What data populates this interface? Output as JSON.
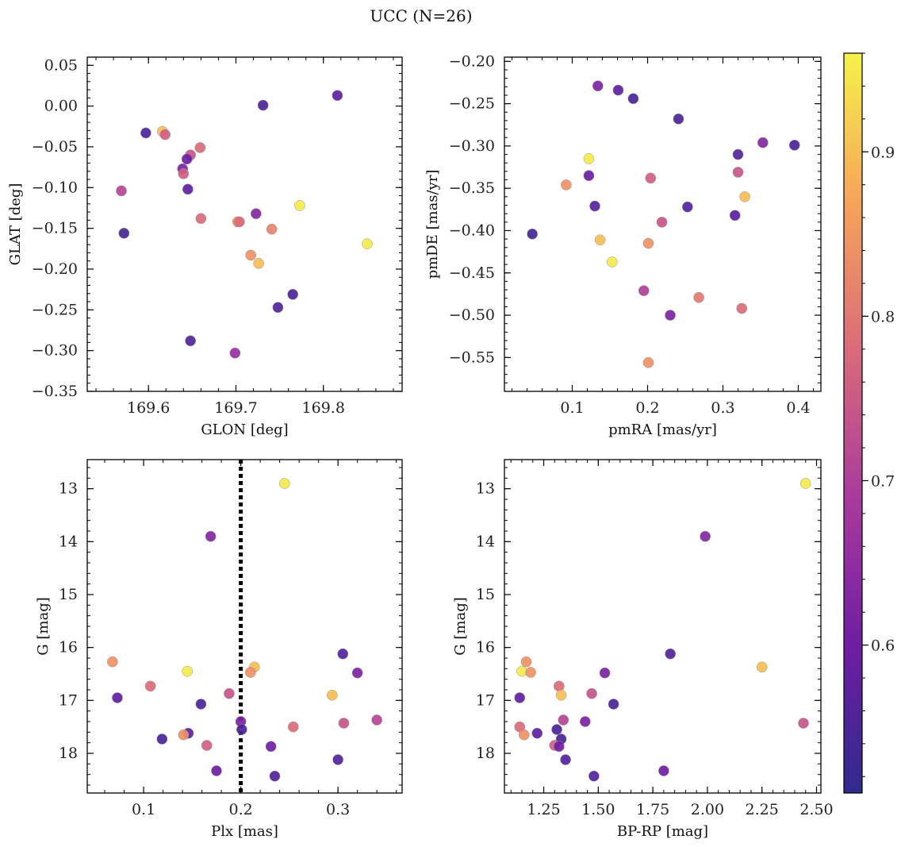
{
  "figure": {
    "suptitle": "UCC (N=26)",
    "colorbar": {
      "colormap": "plasma",
      "range": [
        0.51,
        0.96
      ],
      "ticks": [
        0.6,
        0.7,
        0.8,
        0.9
      ],
      "tick_labels": [
        "0.6",
        "0.7",
        "0.8",
        "0.9"
      ]
    }
  },
  "chart_data": [
    {
      "type": "scatter",
      "panel": "top-left",
      "xlabel": "GLON [deg]",
      "ylabel": "GLAT [deg]",
      "xlim": [
        169.53,
        169.89
      ],
      "ylim": [
        -0.35,
        0.06
      ],
      "xticks": [
        169.6,
        169.7,
        169.8
      ],
      "xtick_labels": [
        "169.6",
        "169.7",
        "169.8"
      ],
      "yticks": [
        0.05,
        0.0,
        -0.05,
        -0.1,
        -0.15,
        -0.2,
        -0.25,
        -0.3,
        -0.35
      ],
      "ytick_labels": [
        "0.05",
        "0.00",
        "−0.05",
        "−0.10",
        "−0.15",
        "−0.20",
        "−0.25",
        "−0.30",
        "−0.35"
      ],
      "points": [
        {
          "x": 169.597,
          "y": -0.033,
          "c": 0.55
        },
        {
          "x": 169.731,
          "y": 0.001,
          "c": 0.55
        },
        {
          "x": 169.816,
          "y": 0.013,
          "c": 0.58
        },
        {
          "x": 169.616,
          "y": -0.031,
          "c": 0.9
        },
        {
          "x": 169.619,
          "y": -0.035,
          "c": 0.76
        },
        {
          "x": 169.659,
          "y": -0.051,
          "c": 0.78
        },
        {
          "x": 169.648,
          "y": -0.06,
          "c": 0.74
        },
        {
          "x": 169.644,
          "y": -0.065,
          "c": 0.6
        },
        {
          "x": 169.639,
          "y": -0.077,
          "c": 0.62
        },
        {
          "x": 169.64,
          "y": -0.083,
          "c": 0.76
        },
        {
          "x": 169.645,
          "y": -0.102,
          "c": 0.58
        },
        {
          "x": 169.569,
          "y": -0.104,
          "c": 0.71
        },
        {
          "x": 169.773,
          "y": -0.122,
          "c": 0.95
        },
        {
          "x": 169.723,
          "y": -0.132,
          "c": 0.63
        },
        {
          "x": 169.66,
          "y": -0.138,
          "c": 0.78
        },
        {
          "x": 169.702,
          "y": -0.142,
          "c": 0.84
        },
        {
          "x": 169.704,
          "y": -0.142,
          "c": 0.78
        },
        {
          "x": 169.741,
          "y": -0.151,
          "c": 0.82
        },
        {
          "x": 169.572,
          "y": -0.156,
          "c": 0.54
        },
        {
          "x": 169.85,
          "y": -0.169,
          "c": 0.95
        },
        {
          "x": 169.717,
          "y": -0.183,
          "c": 0.84
        },
        {
          "x": 169.726,
          "y": -0.193,
          "c": 0.9
        },
        {
          "x": 169.765,
          "y": -0.231,
          "c": 0.55
        },
        {
          "x": 169.748,
          "y": -0.247,
          "c": 0.56
        },
        {
          "x": 169.648,
          "y": -0.288,
          "c": 0.56
        },
        {
          "x": 169.699,
          "y": -0.303,
          "c": 0.66
        }
      ]
    },
    {
      "type": "scatter",
      "panel": "top-right",
      "xlabel": "pmRA [mas/yr]",
      "ylabel": "pmDE [mas/yr]",
      "xlim": [
        0.01,
        0.43
      ],
      "ylim": [
        -0.59,
        -0.195
      ],
      "xticks": [
        0.1,
        0.2,
        0.3,
        0.4
      ],
      "xtick_labels": [
        "0.1",
        "0.2",
        "0.3",
        "0.4"
      ],
      "yticks": [
        -0.2,
        -0.25,
        -0.3,
        -0.35,
        -0.4,
        -0.45,
        -0.5,
        -0.55
      ],
      "ytick_labels": [
        "−0.20",
        "−0.25",
        "−0.30",
        "−0.35",
        "−0.40",
        "−0.45",
        "−0.50",
        "−0.55"
      ],
      "points": [
        {
          "x": 0.134,
          "y": -0.229,
          "c": 0.62
        },
        {
          "x": 0.161,
          "y": -0.234,
          "c": 0.58
        },
        {
          "x": 0.181,
          "y": -0.244,
          "c": 0.55
        },
        {
          "x": 0.241,
          "y": -0.268,
          "c": 0.55
        },
        {
          "x": 0.353,
          "y": -0.296,
          "c": 0.63
        },
        {
          "x": 0.395,
          "y": -0.299,
          "c": 0.55
        },
        {
          "x": 0.32,
          "y": -0.31,
          "c": 0.56
        },
        {
          "x": 0.122,
          "y": -0.315,
          "c": 0.95
        },
        {
          "x": 0.32,
          "y": -0.331,
          "c": 0.74
        },
        {
          "x": 0.122,
          "y": -0.335,
          "c": 0.59
        },
        {
          "x": 0.204,
          "y": -0.338,
          "c": 0.76
        },
        {
          "x": 0.092,
          "y": -0.346,
          "c": 0.84
        },
        {
          "x": 0.329,
          "y": -0.36,
          "c": 0.9
        },
        {
          "x": 0.13,
          "y": -0.371,
          "c": 0.57
        },
        {
          "x": 0.253,
          "y": -0.372,
          "c": 0.56
        },
        {
          "x": 0.316,
          "y": -0.382,
          "c": 0.57
        },
        {
          "x": 0.219,
          "y": -0.39,
          "c": 0.74
        },
        {
          "x": 0.047,
          "y": -0.404,
          "c": 0.54
        },
        {
          "x": 0.137,
          "y": -0.411,
          "c": 0.9
        },
        {
          "x": 0.201,
          "y": -0.415,
          "c": 0.84
        },
        {
          "x": 0.153,
          "y": -0.437,
          "c": 0.95
        },
        {
          "x": 0.195,
          "y": -0.471,
          "c": 0.7
        },
        {
          "x": 0.268,
          "y": -0.479,
          "c": 0.8
        },
        {
          "x": 0.325,
          "y": -0.492,
          "c": 0.78
        },
        {
          "x": 0.23,
          "y": -0.5,
          "c": 0.62
        },
        {
          "x": 0.201,
          "y": -0.556,
          "c": 0.84
        }
      ]
    },
    {
      "type": "scatter",
      "panel": "bottom-left",
      "xlabel": "Plx [mas]",
      "ylabel": "G [mag]",
      "xlim": [
        0.042,
        0.366
      ],
      "ylim": [
        18.75,
        12.45
      ],
      "vline": 0.2,
      "xticks": [
        0.1,
        0.2,
        0.3
      ],
      "xtick_labels": [
        "0.1",
        "0.2",
        "0.3"
      ],
      "yticks": [
        13,
        14,
        15,
        16,
        17,
        18
      ],
      "ytick_labels": [
        "13",
        "14",
        "15",
        "16",
        "17",
        "18"
      ],
      "points": [
        {
          "x": 0.245,
          "y": 12.9,
          "c": 0.95
        },
        {
          "x": 0.169,
          "y": 13.9,
          "c": 0.63
        },
        {
          "x": 0.305,
          "y": 16.12,
          "c": 0.56
        },
        {
          "x": 0.068,
          "y": 16.27,
          "c": 0.84
        },
        {
          "x": 0.214,
          "y": 16.37,
          "c": 0.9
        },
        {
          "x": 0.145,
          "y": 16.45,
          "c": 0.95
        },
        {
          "x": 0.21,
          "y": 16.47,
          "c": 0.84
        },
        {
          "x": 0.32,
          "y": 16.48,
          "c": 0.62
        },
        {
          "x": 0.107,
          "y": 16.73,
          "c": 0.78
        },
        {
          "x": 0.188,
          "y": 16.87,
          "c": 0.74
        },
        {
          "x": 0.294,
          "y": 16.9,
          "c": 0.9
        },
        {
          "x": 0.073,
          "y": 16.95,
          "c": 0.58
        },
        {
          "x": 0.159,
          "y": 17.07,
          "c": 0.55
        },
        {
          "x": 0.34,
          "y": 17.37,
          "c": 0.71
        },
        {
          "x": 0.2,
          "y": 17.4,
          "c": 0.62
        },
        {
          "x": 0.306,
          "y": 17.43,
          "c": 0.74
        },
        {
          "x": 0.254,
          "y": 17.5,
          "c": 0.78
        },
        {
          "x": 0.201,
          "y": 17.55,
          "c": 0.55
        },
        {
          "x": 0.146,
          "y": 17.62,
          "c": 0.58
        },
        {
          "x": 0.141,
          "y": 17.65,
          "c": 0.84
        },
        {
          "x": 0.119,
          "y": 17.73,
          "c": 0.55
        },
        {
          "x": 0.165,
          "y": 17.85,
          "c": 0.76
        },
        {
          "x": 0.231,
          "y": 17.87,
          "c": 0.6
        },
        {
          "x": 0.3,
          "y": 18.12,
          "c": 0.56
        },
        {
          "x": 0.175,
          "y": 18.33,
          "c": 0.6
        },
        {
          "x": 0.235,
          "y": 18.43,
          "c": 0.56
        }
      ]
    },
    {
      "type": "scatter",
      "panel": "bottom-right",
      "xlabel": "BP-RP [mag]",
      "ylabel": "G [mag]",
      "xlim": [
        1.07,
        2.52
      ],
      "ylim": [
        18.75,
        12.45
      ],
      "xticks": [
        1.25,
        1.5,
        1.75,
        2.0,
        2.25,
        2.5
      ],
      "xtick_labels": [
        "1.25",
        "1.50",
        "1.75",
        "2.00",
        "2.25",
        "2.50"
      ],
      "yticks": [
        13,
        14,
        15,
        16,
        17,
        18
      ],
      "ytick_labels": [
        "13",
        "14",
        "15",
        "16",
        "17",
        "18"
      ],
      "points": [
        {
          "x": 2.45,
          "y": 12.9,
          "c": 0.95
        },
        {
          "x": 1.99,
          "y": 13.9,
          "c": 0.63
        },
        {
          "x": 1.83,
          "y": 16.12,
          "c": 0.56
        },
        {
          "x": 1.17,
          "y": 16.27,
          "c": 0.84
        },
        {
          "x": 2.25,
          "y": 16.37,
          "c": 0.9
        },
        {
          "x": 1.15,
          "y": 16.45,
          "c": 0.95
        },
        {
          "x": 1.19,
          "y": 16.47,
          "c": 0.84
        },
        {
          "x": 1.53,
          "y": 16.48,
          "c": 0.62
        },
        {
          "x": 1.32,
          "y": 16.73,
          "c": 0.78
        },
        {
          "x": 1.47,
          "y": 16.87,
          "c": 0.74
        },
        {
          "x": 1.33,
          "y": 16.9,
          "c": 0.9
        },
        {
          "x": 1.14,
          "y": 16.95,
          "c": 0.58
        },
        {
          "x": 1.57,
          "y": 17.07,
          "c": 0.55
        },
        {
          "x": 1.34,
          "y": 17.37,
          "c": 0.71
        },
        {
          "x": 1.44,
          "y": 17.4,
          "c": 0.62
        },
        {
          "x": 2.44,
          "y": 17.43,
          "c": 0.74
        },
        {
          "x": 1.14,
          "y": 17.5,
          "c": 0.78
        },
        {
          "x": 1.31,
          "y": 17.55,
          "c": 0.55
        },
        {
          "x": 1.22,
          "y": 17.62,
          "c": 0.58
        },
        {
          "x": 1.16,
          "y": 17.65,
          "c": 0.84
        },
        {
          "x": 1.33,
          "y": 17.73,
          "c": 0.55
        },
        {
          "x": 1.3,
          "y": 17.85,
          "c": 0.76
        },
        {
          "x": 1.32,
          "y": 17.87,
          "c": 0.6
        },
        {
          "x": 1.35,
          "y": 18.12,
          "c": 0.56
        },
        {
          "x": 1.8,
          "y": 18.33,
          "c": 0.6
        },
        {
          "x": 1.48,
          "y": 18.43,
          "c": 0.56
        }
      ]
    }
  ]
}
